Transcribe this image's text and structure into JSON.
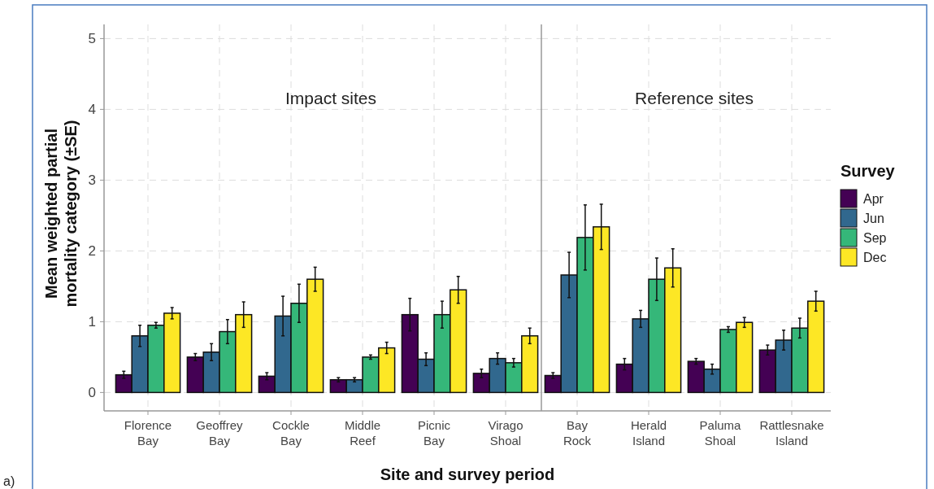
{
  "chart_data": [
    {
      "type": "bar",
      "xlabel": "Site and survey period",
      "ylabel": "Mean weighted partial\nmortality category (±SE)",
      "categories": [
        "Florence\nBay",
        "Geoffrey\nBay",
        "Cockle\nBay",
        "Middle\nReef",
        "Picnic\nBay",
        "Virago\nShoal"
      ],
      "series": [
        {
          "color": "#440154",
          "values": [
            0.25,
            0.5,
            0.23,
            0.18,
            1.1,
            0.27
          ],
          "errors": [
            0.05,
            0.05,
            0.05,
            0.03,
            0.23,
            0.06
          ]
        },
        {
          "color": "#31688e",
          "values": [
            0.8,
            0.57,
            1.08,
            0.18,
            0.47,
            0.48
          ],
          "errors": [
            0.15,
            0.12,
            0.28,
            0.03,
            0.09,
            0.08
          ]
        },
        {
          "color": "#35b779",
          "values": [
            0.95,
            0.86,
            1.26,
            0.5,
            1.1,
            0.42
          ],
          "errors": [
            0.04,
            0.17,
            0.27,
            0.03,
            0.19,
            0.06
          ]
        },
        {
          "color": "#fde725",
          "values": [
            1.12,
            1.1,
            1.6,
            0.63,
            1.45,
            0.8
          ],
          "errors": [
            0.08,
            0.18,
            0.17,
            0.08,
            0.19,
            0.11
          ]
        }
      ],
      "ylim": [
        -0.26,
        5.2
      ],
      "yticks": [
        0,
        1,
        2,
        3,
        4,
        5
      ],
      "grid": true,
      "annotations": [
        "Impact sites",
        "a)"
      ]
    },
    {
      "type": "bar",
      "legend_title": "Survey",
      "categories": [
        "Bay\nRock",
        "Herald\nIsland",
        "Paluma\nShoal",
        "Rattlesnake\nIsland"
      ],
      "series": [
        {
          "name": "Apr",
          "color": "#440154",
          "values": [
            0.24,
            0.4,
            0.44,
            0.6
          ],
          "errors": [
            0.04,
            0.08,
            0.04,
            0.07
          ]
        },
        {
          "name": "Jun",
          "color": "#31688e",
          "values": [
            1.66,
            1.04,
            0.33,
            0.74
          ],
          "errors": [
            0.32,
            0.12,
            0.07,
            0.14
          ]
        },
        {
          "name": "Sep",
          "color": "#35b779",
          "values": [
            2.19,
            1.6,
            0.89,
            0.91
          ],
          "errors": [
            0.46,
            0.3,
            0.04,
            0.14
          ]
        },
        {
          "name": "Dec",
          "color": "#fde725",
          "values": [
            2.34,
            1.76,
            0.99,
            1.29
          ],
          "errors": [
            0.32,
            0.27,
            0.07,
            0.14
          ]
        }
      ],
      "ylim": [
        -0.26,
        5.2
      ],
      "yticks": [
        0,
        1,
        2,
        3,
        4,
        5
      ],
      "grid": true,
      "tick_labels": "x",
      "legend": "right",
      "annotations": [
        "Reference sites"
      ]
    }
  ]
}
